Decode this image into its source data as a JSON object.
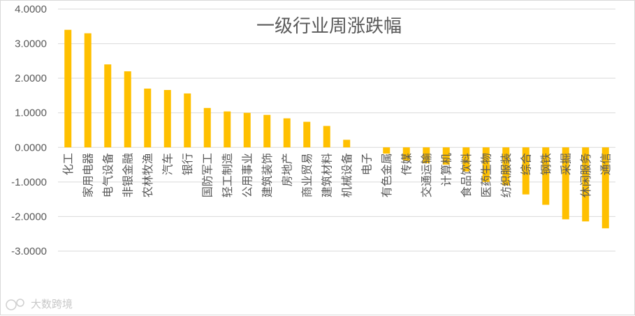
{
  "chart_data": {
    "type": "bar",
    "title": "一级行业周涨跌幅",
    "xlabel": "",
    "ylabel": "",
    "ylim": [
      -3,
      4
    ],
    "yticks": [
      "4.0000",
      "3.0000",
      "2.0000",
      "1.0000",
      "0.0000",
      "-1.0000",
      "-2.0000",
      "-3.0000"
    ],
    "grid": true,
    "legend": "none",
    "bar_color": "#ffc000",
    "categories": [
      "化工",
      "家用电器",
      "电气设备",
      "非银金融",
      "农林牧渔",
      "汽车",
      "银行",
      "国防军工",
      "轻工制造",
      "公用事业",
      "建筑装饰",
      "房地产",
      "商业贸易",
      "建筑材料",
      "机械设备",
      "电子",
      "有色金属",
      "传媒",
      "交通运输",
      "计算机",
      "食品饮料",
      "医药生物",
      "纺织服装",
      "综合",
      "钢铁",
      "采掘",
      "休闲服务",
      "通信"
    ],
    "values": [
      3.4,
      3.3,
      2.4,
      2.2,
      1.7,
      1.66,
      1.56,
      1.14,
      1.04,
      1.0,
      0.94,
      0.84,
      0.74,
      0.62,
      0.22,
      0.0,
      -0.18,
      -0.38,
      -0.46,
      -0.5,
      -0.7,
      -1.0,
      -1.1,
      -1.36,
      -1.66,
      -2.08,
      -2.14,
      -2.34
    ]
  },
  "watermark": {
    "text": "大数跨境",
    "icon": "logo-icon"
  }
}
